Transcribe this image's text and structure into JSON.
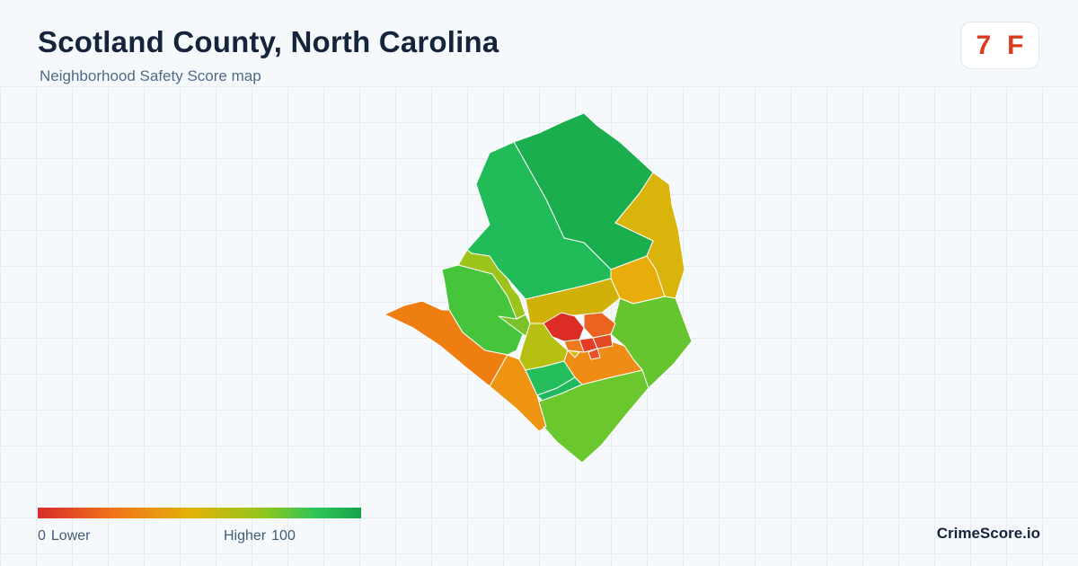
{
  "header": {
    "title": "Scotland County, North Carolina",
    "subtitle": "Neighborhood Safety Score map"
  },
  "grade": {
    "score": "7",
    "letter": "F",
    "color": "#dd3a1c"
  },
  "legend": {
    "min": "0",
    "min_label": "Lower",
    "max_label": "Higher",
    "max": "100",
    "colors": [
      "#d92b2b",
      "#f07818",
      "#e2b308",
      "#8ec61e",
      "#2fc456",
      "#15a34a"
    ]
  },
  "brand": "CrimeScore.io"
}
